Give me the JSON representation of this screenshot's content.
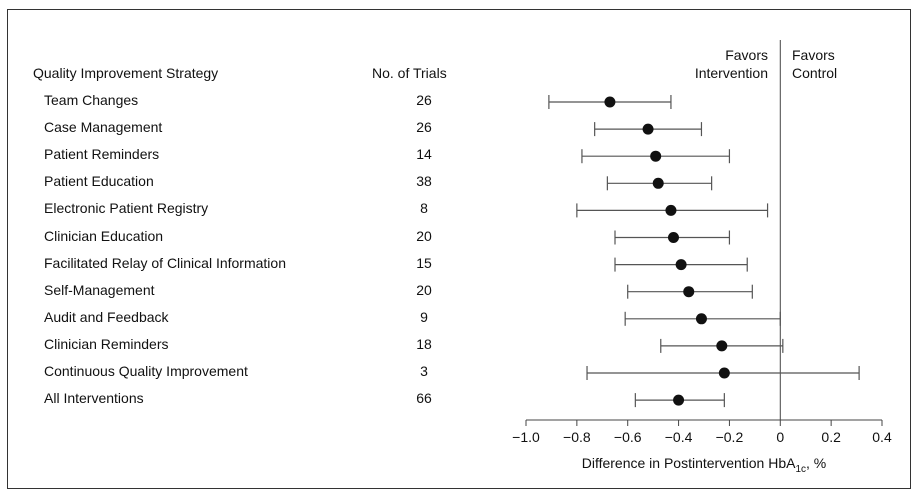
{
  "headers": {
    "strategy": "Quality Improvement Strategy",
    "trials": "No. of Trials"
  },
  "favors": {
    "left_line1": "Favors",
    "left_line2": "Intervention",
    "right_line1": "Favors",
    "right_line2": "Control"
  },
  "chart_data": {
    "type": "forest",
    "xlabel": "Difference in Postintervention HbA1c, %",
    "xlabel_main": "Difference in Postintervention HbA",
    "xlabel_sub": "1c",
    "xlabel_tail": ", %",
    "xlim": [
      -1.0,
      0.4
    ],
    "xticks": [
      -1.0,
      -0.8,
      -0.6,
      -0.4,
      -0.2,
      0,
      0.2,
      0.4
    ],
    "xtick_labels": [
      "−1.0",
      "−0.8",
      "−0.6",
      "−0.4",
      "−0.2",
      "0",
      "0.2",
      "0.4"
    ],
    "reference_line": 0,
    "rows": [
      {
        "label": "Team Changes",
        "trials": "26",
        "estimate": -0.67,
        "ci_low": -0.91,
        "ci_high": -0.43
      },
      {
        "label": "Case Management",
        "trials": "26",
        "estimate": -0.52,
        "ci_low": -0.73,
        "ci_high": -0.31
      },
      {
        "label": "Patient Reminders",
        "trials": "14",
        "estimate": -0.49,
        "ci_low": -0.78,
        "ci_high": -0.2
      },
      {
        "label": "Patient Education",
        "trials": "38",
        "estimate": -0.48,
        "ci_low": -0.68,
        "ci_high": -0.27
      },
      {
        "label": "Electronic Patient Registry",
        "trials": "8",
        "estimate": -0.43,
        "ci_low": -0.8,
        "ci_high": -0.05
      },
      {
        "label": "Clinician Education",
        "trials": "20",
        "estimate": -0.42,
        "ci_low": -0.65,
        "ci_high": -0.2
      },
      {
        "label": "Facilitated Relay of Clinical Information",
        "trials": "15",
        "estimate": -0.39,
        "ci_low": -0.65,
        "ci_high": -0.13
      },
      {
        "label": "Self-Management",
        "trials": "20",
        "estimate": -0.36,
        "ci_low": -0.6,
        "ci_high": -0.11
      },
      {
        "label": "Audit and Feedback",
        "trials": "9",
        "estimate": -0.31,
        "ci_low": -0.61,
        "ci_high": 0.0
      },
      {
        "label": "Clinician Reminders",
        "trials": "18",
        "estimate": -0.23,
        "ci_low": -0.47,
        "ci_high": 0.01
      },
      {
        "label": "Continuous Quality Improvement",
        "trials": "3",
        "estimate": -0.22,
        "ci_low": -0.76,
        "ci_high": 0.31
      },
      {
        "label": "All Interventions",
        "trials": "66",
        "estimate": -0.4,
        "ci_low": -0.57,
        "ci_high": -0.22
      }
    ]
  }
}
